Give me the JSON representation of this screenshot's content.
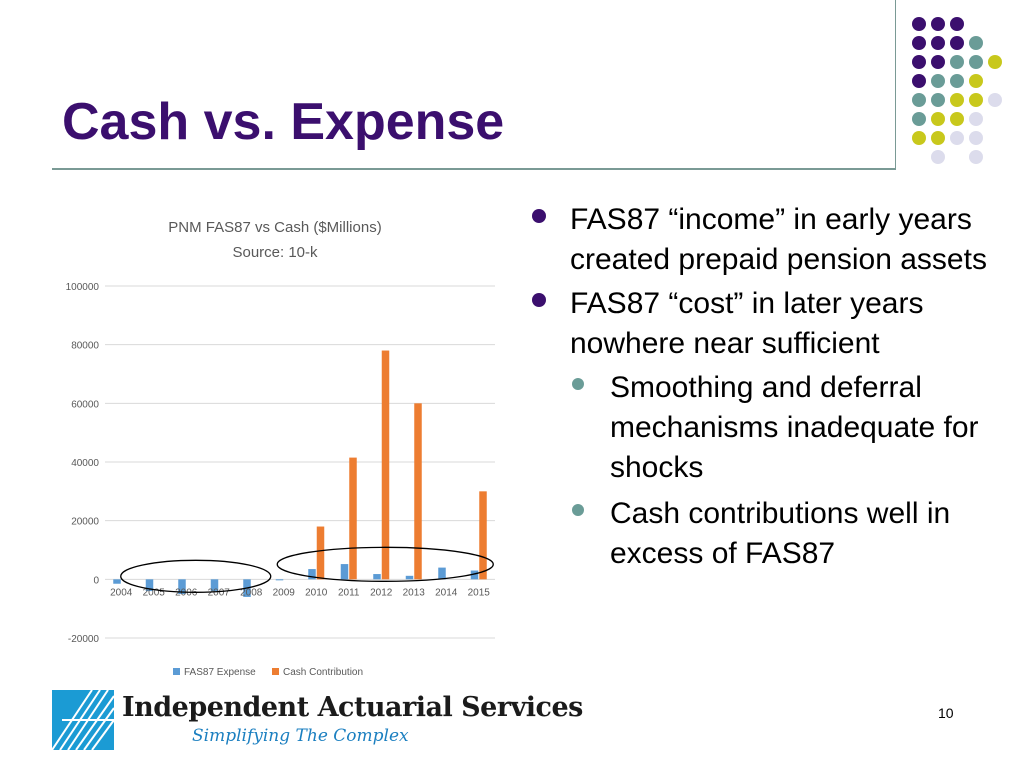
{
  "slide": {
    "title": "Cash vs. Expense",
    "page_number": "10",
    "accent_color": "#3b0f6e",
    "bullets": [
      {
        "level": 1,
        "text": "FAS87 “income” in early years created prepaid pension assets"
      },
      {
        "level": 1,
        "text": "FAS87 “cost” in later years nowhere near sufficient"
      },
      {
        "level": 2,
        "text": "Smoothing and deferral mechanisms inadequate for shocks"
      },
      {
        "level": 2,
        "text": "Cash contributions well in excess of FAS87"
      }
    ],
    "logo": {
      "name": "Independent Actuarial Services",
      "tagline": "Simplifying The Complex"
    }
  },
  "chart_data": {
    "type": "bar",
    "title": "PNM FAS87 vs Cash ($Millions)",
    "subtitle": "Source:  10-k",
    "categories": [
      "2004",
      "2005",
      "2006",
      "2007",
      "2008",
      "2009",
      "2010",
      "2011",
      "2012",
      "2013",
      "2014",
      "2015"
    ],
    "series": [
      {
        "name": "FAS87 Expense",
        "color": "#5b9bd5",
        "values": [
          -1500,
          -4000,
          -5000,
          -4000,
          -6000,
          -300,
          3500,
          5200,
          1800,
          1200,
          4000,
          3000
        ]
      },
      {
        "name": "Cash Contribution",
        "color": "#ed7d31",
        "values": [
          0,
          0,
          0,
          0,
          0,
          0,
          18000,
          41500,
          78000,
          60000,
          0,
          30000
        ]
      }
    ],
    "ylim": [
      -20000,
      100000
    ],
    "yticks": [
      "-20000",
      "0",
      "20000",
      "40000",
      "60000",
      "80000",
      "100000"
    ],
    "grid": true,
    "legend": "bottom",
    "annotations": [
      "ellipse around 2004–2008 near zero",
      "ellipse around 2009–2015 near zero"
    ]
  }
}
